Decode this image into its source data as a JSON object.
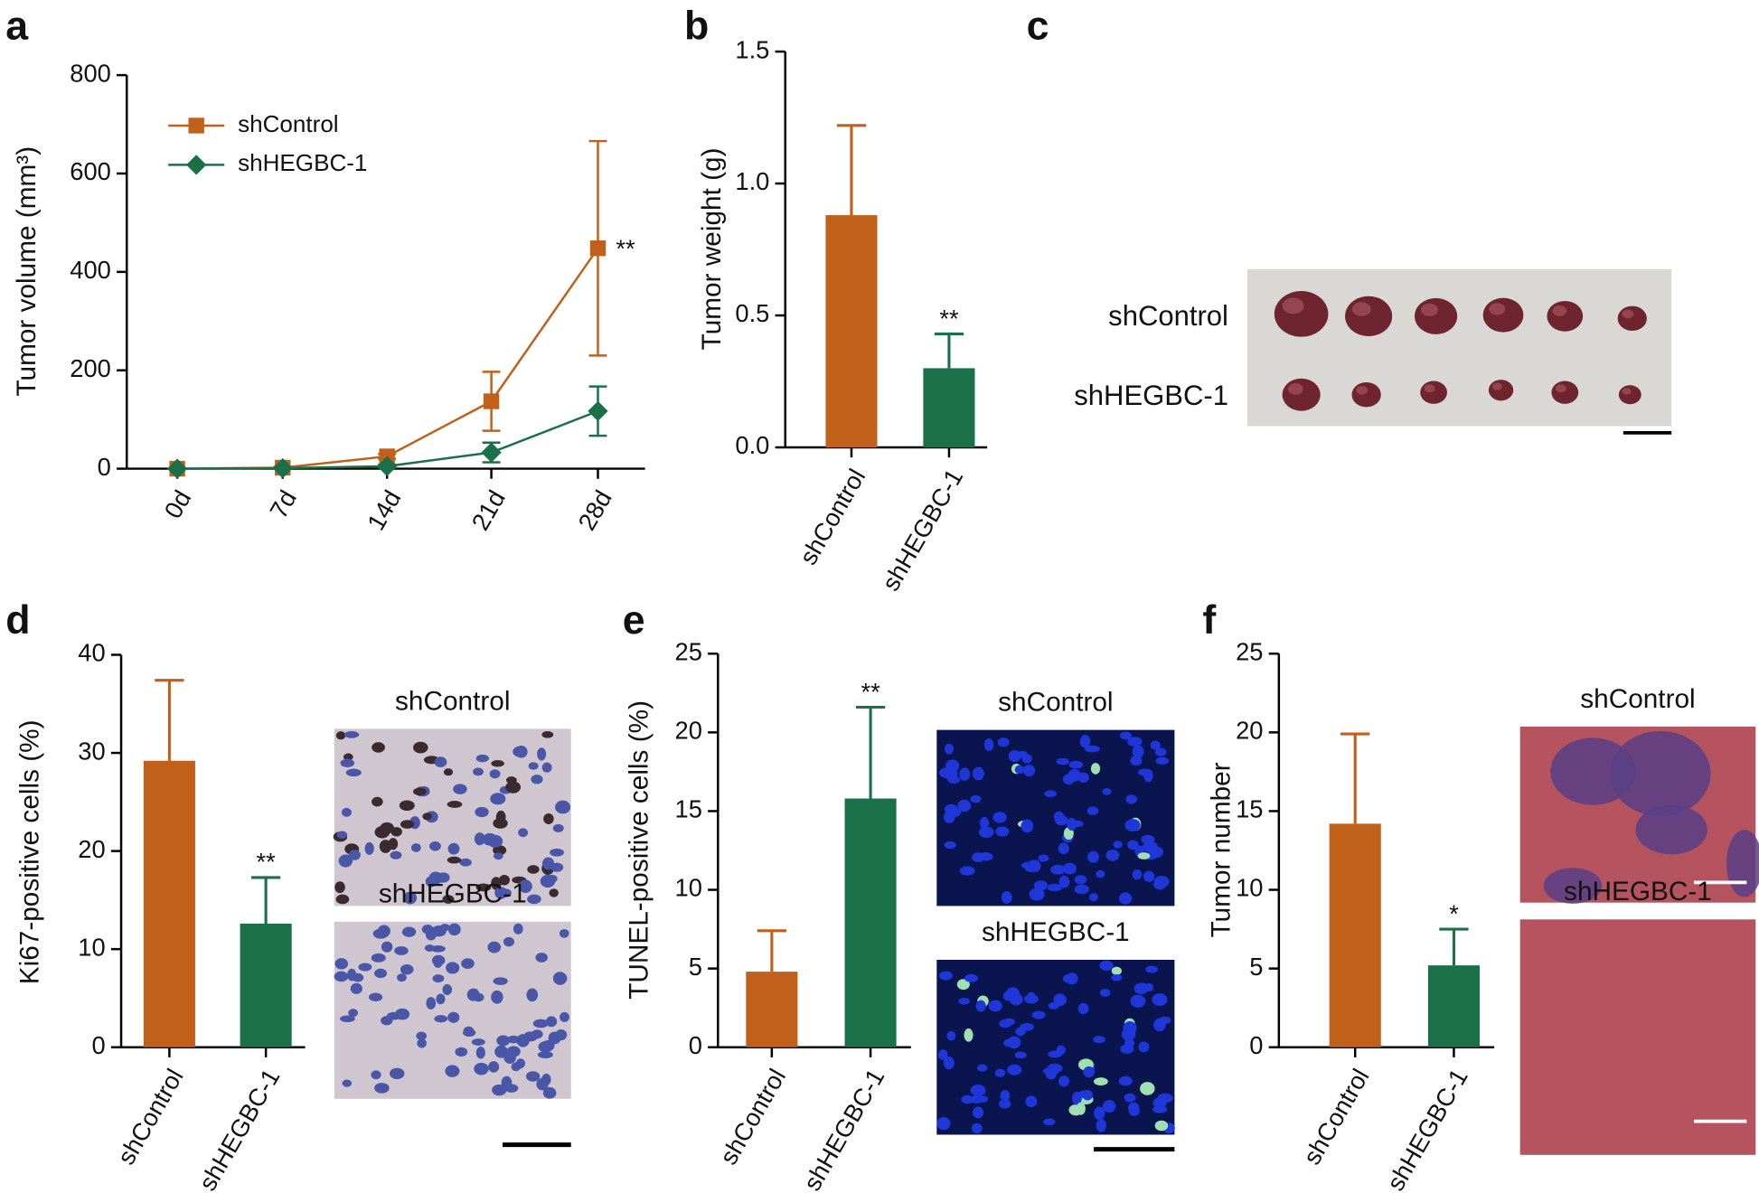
{
  "figure_c": {
    "panel": "c",
    "labels": [
      "shControl",
      "shHEGBC-1"
    ]
  },
  "chart_data": [
    {
      "panel": "a",
      "type": "line",
      "y_label": "Tumor volume (mm³)",
      "categories": [
        "0d",
        "7d",
        "14d",
        "21d",
        "28d"
      ],
      "series": [
        {
          "name": "shControl",
          "color": "#c0601a",
          "marker": "square",
          "values": [
            0,
            2,
            25,
            137,
            448
          ],
          "errors": [
            0,
            2,
            5,
            60,
            218
          ],
          "annotations": [
            null,
            null,
            null,
            null,
            "**"
          ]
        },
        {
          "name": "shHEGBC-1",
          "color": "#1a7048",
          "marker": "diamond",
          "values": [
            0,
            1,
            5,
            33,
            117
          ],
          "errors": [
            0,
            1,
            3,
            20,
            50
          ],
          "annotations": [
            null,
            null,
            null,
            null,
            null
          ]
        }
      ],
      "ylim": [
        0,
        800
      ],
      "yticks": [
        0,
        200,
        400,
        600,
        800
      ]
    },
    {
      "panel": "b",
      "type": "bar",
      "y_label": "Tumor weight (g)",
      "categories": [
        "shControl",
        "shHEGBC-1"
      ],
      "values": [
        0.88,
        0.3
      ],
      "errors": [
        0.34,
        0.13
      ],
      "colors": [
        "#c0601a",
        "#1a7048"
      ],
      "annotations": [
        null,
        "**"
      ],
      "ylim": [
        0,
        1.5
      ],
      "yticks": [
        {
          "value": 0,
          "label": "0.0"
        },
        0.5,
        {
          "value": 1,
          "label": "1.0"
        },
        1.5
      ]
    },
    {
      "panel": "d",
      "type": "bar",
      "y_label": "Ki67-positive cells (%)",
      "categories": [
        "shControl",
        "shHEGBC-1"
      ],
      "values": [
        29.2,
        12.6
      ],
      "errors": [
        8.2,
        4.7
      ],
      "colors": [
        "#c0601a",
        "#1a7048"
      ],
      "annotations": [
        null,
        "**"
      ],
      "ylim": [
        0,
        40
      ],
      "yticks": [
        0,
        10,
        20,
        30,
        40
      ],
      "image_labels": [
        "shControl",
        "shHEGBC-1"
      ]
    },
    {
      "panel": "e",
      "type": "bar",
      "y_label": "TUNEL-positive cells (%)",
      "categories": [
        "shControl",
        "shHEGBC-1"
      ],
      "values": [
        4.8,
        15.8
      ],
      "errors": [
        2.6,
        5.8
      ],
      "colors": [
        "#c0601a",
        "#1a7048"
      ],
      "annotations": [
        null,
        "**"
      ],
      "ylim": [
        0,
        25
      ],
      "yticks": [
        0,
        5,
        10,
        15,
        20,
        25
      ],
      "image_labels": [
        "shControl",
        "shHEGBC-1"
      ]
    },
    {
      "panel": "f",
      "type": "bar",
      "y_label": "Tumor number",
      "categories": [
        "shControl",
        "shHEGBC-1"
      ],
      "values": [
        14.2,
        5.2
      ],
      "errors": [
        5.7,
        2.3
      ],
      "colors": [
        "#c0601a",
        "#1a7048"
      ],
      "annotations": [
        null,
        "*"
      ],
      "ylim": [
        0,
        25
      ],
      "yticks": [
        0,
        5,
        10,
        15,
        20,
        25
      ],
      "image_labels": [
        "shControl",
        "shHEGBC-1"
      ]
    }
  ]
}
